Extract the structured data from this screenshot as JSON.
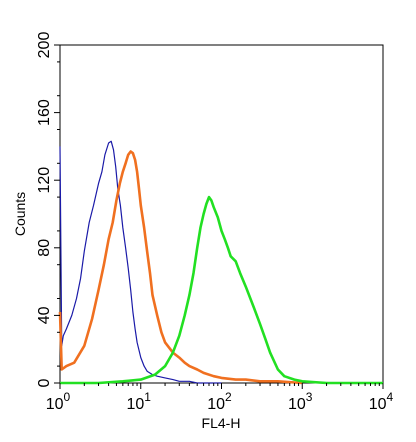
{
  "chart_data": {
    "type": "line",
    "title": "",
    "xlabel": "FL4-H",
    "ylabel": "Counts",
    "x_scale": "log",
    "xlim": [
      1,
      10000
    ],
    "ylim": [
      0,
      200
    ],
    "x_ticks": [
      {
        "value": 1,
        "base": "10",
        "exp": "0"
      },
      {
        "value": 10,
        "base": "10",
        "exp": "1"
      },
      {
        "value": 100,
        "base": "10",
        "exp": "2"
      },
      {
        "value": 1000,
        "base": "10",
        "exp": "3"
      },
      {
        "value": 10000,
        "base": "10",
        "exp": "4"
      }
    ],
    "y_ticks": [
      "0",
      "40",
      "80",
      "120",
      "160",
      "200"
    ],
    "grid": false,
    "series": [
      {
        "color": "#1a1aa8",
        "x": [
          1,
          1.05,
          1.1,
          1.2,
          1.4,
          1.6,
          1.8,
          2.0,
          2.3,
          2.6,
          3.0,
          3.3,
          3.6,
          4.0,
          4.3,
          4.6,
          4.9,
          5.2,
          5.6,
          6.0,
          6.5,
          7.0,
          7.5,
          8.0,
          8.5,
          9.0,
          10,
          11,
          12,
          14,
          16,
          20,
          25,
          30,
          40,
          50,
          70,
          100
        ],
        "y": [
          140,
          22,
          28,
          32,
          40,
          50,
          62,
          78,
          95,
          105,
          118,
          125,
          135,
          142,
          143,
          138,
          128,
          115,
          105,
          92,
          80,
          68,
          55,
          42,
          32,
          24,
          15,
          10,
          7,
          5,
          4,
          3,
          2,
          1,
          1,
          0,
          0,
          0
        ]
      },
      {
        "color": "#f07020",
        "x": [
          1,
          1.05,
          1.2,
          1.5,
          2.0,
          2.5,
          3.0,
          3.5,
          4.0,
          4.5,
          5.0,
          5.5,
          6.0,
          6.5,
          7.0,
          7.5,
          8.0,
          8.5,
          9.0,
          9.5,
          10,
          11,
          12,
          13,
          14,
          16,
          18,
          20,
          25,
          30,
          35,
          40,
          50,
          60,
          80,
          100,
          150,
          200,
          300,
          500,
          1000
        ],
        "y": [
          42,
          8,
          10,
          12,
          22,
          38,
          55,
          70,
          85,
          95,
          108,
          118,
          125,
          130,
          135,
          137,
          136,
          132,
          125,
          115,
          105,
          92,
          78,
          65,
          52,
          40,
          30,
          24,
          18,
          15,
          12,
          10,
          8,
          6,
          4,
          3,
          2,
          2,
          1,
          1,
          0
        ]
      },
      {
        "color": "#22e022",
        "x": [
          1,
          3,
          6,
          10,
          15,
          20,
          25,
          30,
          35,
          40,
          45,
          50,
          55,
          60,
          65,
          70,
          75,
          80,
          90,
          100,
          110,
          120,
          130,
          150,
          170,
          200,
          250,
          300,
          350,
          400,
          500,
          600,
          800,
          1000,
          2000,
          5000,
          10000
        ],
        "y": [
          0,
          0,
          1,
          2,
          5,
          10,
          18,
          28,
          40,
          52,
          65,
          80,
          92,
          100,
          106,
          110,
          108,
          104,
          98,
          90,
          85,
          80,
          75,
          72,
          65,
          57,
          45,
          35,
          26,
          18,
          8,
          4,
          2,
          1,
          0,
          0,
          0
        ]
      }
    ]
  }
}
